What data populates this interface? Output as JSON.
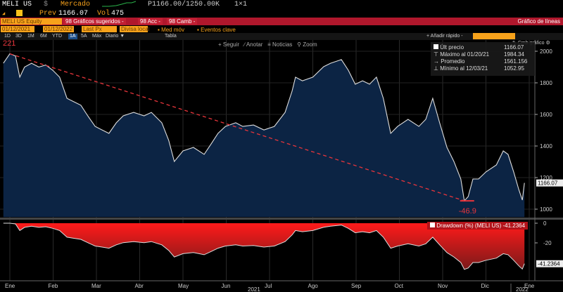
{
  "header": {
    "ticker": "MELI US",
    "currency": "$",
    "market": "Mercado",
    "bid_ask": "P1166.00/1250.00K",
    "size": "1×1",
    "prev_label": "Prev",
    "prev": "1166.07",
    "vol_label": "Vol",
    "vol": "475"
  },
  "menubar": {
    "security": "MELI US Equity",
    "suggested": "98 Gráficos sugeridos -",
    "actions": "98 Acc -",
    "change": "98 Camb -",
    "chart_type": "Gráfico de líneas"
  },
  "options": {
    "start_date": "01/12/2021",
    "end_date": "01/12/2022",
    "field": "Last Px",
    "currency": "Divisa local",
    "moving_avg": "Med móv",
    "key_events": "Eventos clave"
  },
  "timeframes": [
    "1D",
    "3D",
    "1M",
    "6M",
    "YTD",
    "1A",
    "5A",
    "Máx",
    "Diario ▼"
  ],
  "active_timeframe": "1A",
  "table_label": "Tabla",
  "toolbar": {
    "follow": "Seguir",
    "annotate": "Anotar",
    "news": "Noticias",
    "zoom": "Zoom",
    "quick_add": "+ Añadir rápido -",
    "chart_settings": "Cmb gráfico"
  },
  "legend": {
    "last_label": "Últ precio",
    "last": "1166.07",
    "max_label": "Máximo al 01/20/21",
    "max": "1984.34",
    "avg_label": "Promedio",
    "avg": "1561.156",
    "min_label": "Mínimo al 12/03/21",
    "min": "1052.95"
  },
  "drawdown_legend": "Drawdown (%) (MELI US) -41.2364",
  "colors": {
    "price_fill": "#0c2444",
    "line": "#dddddd",
    "drawdown": "#e8151b",
    "trend": "#e8353b",
    "menubar": "#b0172c",
    "orange": "#f7a21b"
  },
  "chart_data": [
    {
      "type": "area",
      "title": "MELI US Last Px",
      "x_unit": "months since Jan 2021",
      "ylim": [
        950,
        2030
      ],
      "yticks": [
        1000,
        1200,
        1400,
        1600,
        1800,
        2000
      ],
      "last_value_label": "1166.07",
      "trend_annotation": {
        "from": [
          0,
          1984
        ],
        "to": [
          10.5,
          1053
        ],
        "start_label": "221",
        "end_label": "-46.9"
      },
      "points": [
        [
          -0.15,
          1924
        ],
        [
          0,
          1984
        ],
        [
          0.13,
          1970
        ],
        [
          0.23,
          1836
        ],
        [
          0.34,
          1900
        ],
        [
          0.5,
          1924
        ],
        [
          0.67,
          1900
        ],
        [
          0.83,
          1913
        ],
        [
          0.99,
          1880
        ],
        [
          1.15,
          1836
        ],
        [
          1.32,
          1702
        ],
        [
          1.48,
          1680
        ],
        [
          1.64,
          1658
        ],
        [
          1.8,
          1591
        ],
        [
          1.97,
          1524
        ],
        [
          2.13,
          1502
        ],
        [
          2.29,
          1480
        ],
        [
          2.46,
          1547
        ],
        [
          2.62,
          1591
        ],
        [
          2.86,
          1613
        ],
        [
          3.1,
          1591
        ],
        [
          3.27,
          1613
        ],
        [
          3.51,
          1547
        ],
        [
          3.67,
          1436
        ],
        [
          3.8,
          1302
        ],
        [
          4.0,
          1369
        ],
        [
          4.24,
          1391
        ],
        [
          4.49,
          1347
        ],
        [
          4.65,
          1413
        ],
        [
          4.81,
          1480
        ],
        [
          4.98,
          1524
        ],
        [
          5.22,
          1547
        ],
        [
          5.38,
          1524
        ],
        [
          5.63,
          1533
        ],
        [
          5.87,
          1502
        ],
        [
          6.11,
          1524
        ],
        [
          6.36,
          1613
        ],
        [
          6.52,
          1747
        ],
        [
          6.6,
          1836
        ],
        [
          6.76,
          1813
        ],
        [
          7.0,
          1836
        ],
        [
          7.25,
          1902
        ],
        [
          7.41,
          1924
        ],
        [
          7.66,
          1947
        ],
        [
          7.82,
          1880
        ],
        [
          7.98,
          1791
        ],
        [
          8.15,
          1813
        ],
        [
          8.31,
          1791
        ],
        [
          8.47,
          1836
        ],
        [
          8.63,
          1702
        ],
        [
          8.8,
          1480
        ],
        [
          8.96,
          1524
        ],
        [
          9.2,
          1569
        ],
        [
          9.45,
          1524
        ],
        [
          9.61,
          1569
        ],
        [
          9.77,
          1702
        ],
        [
          9.93,
          1547
        ],
        [
          10.1,
          1391
        ],
        [
          10.26,
          1302
        ],
        [
          10.42,
          1191
        ],
        [
          10.5,
          1053
        ],
        [
          10.59,
          1080
        ],
        [
          10.7,
          1191
        ],
        [
          10.83,
          1191
        ],
        [
          11.0,
          1236
        ],
        [
          11.24,
          1280
        ],
        [
          11.4,
          1369
        ],
        [
          11.51,
          1347
        ],
        [
          11.64,
          1236
        ],
        [
          11.76,
          1124
        ],
        [
          11.84,
          1058
        ],
        [
          11.89,
          1166
        ]
      ]
    },
    {
      "type": "area",
      "title": "Drawdown (%) (MELI US)",
      "ylim": [
        -46,
        2
      ],
      "yticks": [
        0,
        -20
      ],
      "last_value_label": "-41.2364",
      "derived_from": "price running max"
    }
  ],
  "xaxis": {
    "months": [
      "Ene",
      "Feb",
      "Mar",
      "Abr",
      "May",
      "Jun",
      "Jul",
      "Ago",
      "Sep",
      "Oct",
      "Nov",
      "Dic",
      "Ene"
    ],
    "years": [
      "2021",
      "2022"
    ]
  }
}
